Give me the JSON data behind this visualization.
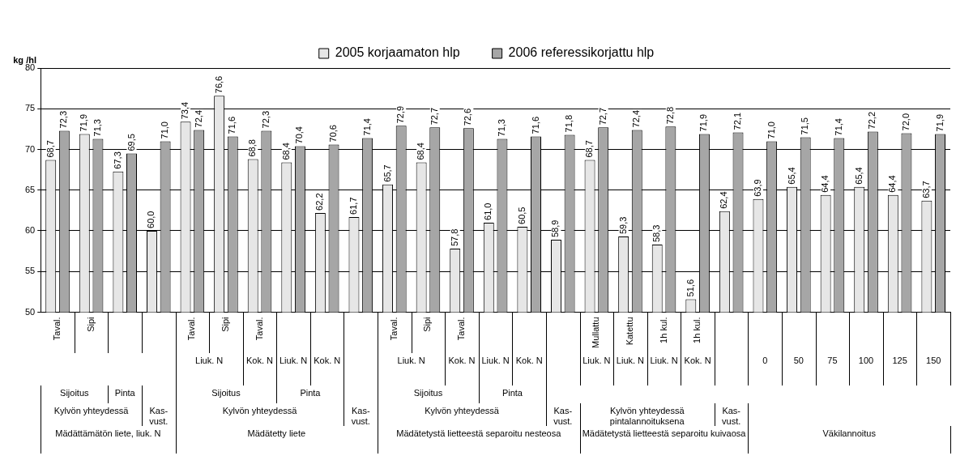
{
  "chart_data": {
    "type": "bar",
    "ylabel": "kg /hl",
    "categories": [
      "Taval.",
      "Sipi",
      null,
      null,
      "Taval.",
      "Sipi",
      "Taval.",
      null,
      null,
      null,
      "Taval.",
      "Sipi",
      "Taval.",
      null,
      null,
      null,
      "Mullattu",
      "Katettu",
      "1h kul.",
      "1h kul.",
      null,
      null,
      null,
      null,
      null,
      null,
      null
    ],
    "series": [
      {
        "name": "2005 korjaamaton hlp",
        "color": "#e6e6e6",
        "values": [
          68.7,
          71.9,
          67.3,
          60.0,
          73.4,
          76.6,
          68.8,
          68.4,
          62.2,
          61.7,
          65.7,
          68.4,
          57.8,
          61.0,
          60.5,
          58.9,
          68.7,
          59.3,
          58.3,
          51.6,
          62.4,
          63.9,
          65.4,
          64.4,
          65.4,
          64.4,
          63.7
        ],
        "value_labels": [
          "68,7",
          "71,9",
          "67,3",
          "60,0",
          "73,4",
          "76,6",
          "68,8",
          "68,4",
          "62,2",
          "61,7",
          "65,7",
          "68,4",
          "57,8",
          "61,0",
          "60,5",
          "58,9",
          "68,7",
          "59,3",
          "58,3",
          "51,6",
          "62,4",
          "63,9",
          "65,4",
          "64,4",
          "65,4",
          "64,4",
          "63,7"
        ]
      },
      {
        "name": "2006 referessikorjattu hlp",
        "color": "#a6a6a6",
        "values": [
          72.3,
          71.3,
          69.5,
          71.0,
          72.4,
          71.6,
          72.3,
          70.4,
          70.6,
          71.4,
          72.9,
          72.7,
          72.6,
          71.3,
          71.6,
          71.8,
          72.7,
          72.4,
          72.8,
          71.9,
          72.1,
          71.0,
          71.5,
          71.4,
          72.2,
          72.0,
          71.9
        ],
        "value_labels": [
          "72,3",
          "71,3",
          "69,5",
          "71,0",
          "72,4",
          "71,6",
          "72,3",
          "70,4",
          "70,6",
          "71,4",
          "72,9",
          "72,7",
          "72,6",
          "71,3",
          "71,6",
          "71,8",
          "72,7",
          "72,4",
          "72,8",
          "71,9",
          "72,1",
          "71,0",
          "71,5",
          "71,4",
          "72,2",
          "72,0",
          "71,9"
        ]
      }
    ],
    "ylim": [
      50,
      80
    ],
    "yticks": [
      50,
      55,
      60,
      65,
      70,
      75,
      80
    ],
    "grid": "y",
    "legend": "top",
    "annotations": [
      "Liuk. N",
      "Kok. N",
      "Liuk. N",
      "Kok. N",
      "Liuk. N",
      "Kok. N",
      "Liuk. N",
      "Kok. N",
      "Liuk. N",
      "Liuk. N",
      "Liuk. N",
      "Kok. N",
      "0",
      "50",
      "75",
      "100",
      "125",
      "150",
      "Sijoitus",
      "Pinta",
      "Sijoitus",
      "Pinta",
      "Sijoitus",
      "Pinta",
      "Kylvön yhteydessä",
      "Kas-vust.",
      "Kylvön yhteydessä",
      "Kas-vust.",
      "Kylvön yhteydessä",
      "Kas-vust.",
      "Kylvön yhteydessä pintalannoituksena",
      "Kas-vust.",
      "Mädättämätön liete, liuk. N",
      "Mädätetty liete",
      "Mädätetystä lietteestä separoitu nesteosa",
      "Mädätetystä lietteestä separoitu kuivaosa",
      "Väkilannoitus"
    ]
  }
}
